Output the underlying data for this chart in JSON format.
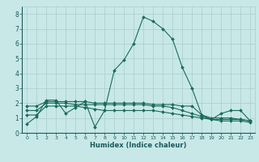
{
  "xlabel": "Humidex (Indice chaleur)",
  "background_color": "#c8e8e8",
  "grid_color": "#aacccc",
  "line_color": "#1a6b5a",
  "xlim": [
    -0.5,
    23.5
  ],
  "ylim": [
    0,
    8.5
  ],
  "xticks": [
    0,
    1,
    2,
    3,
    4,
    5,
    6,
    7,
    8,
    9,
    10,
    11,
    12,
    13,
    14,
    15,
    16,
    17,
    18,
    19,
    20,
    21,
    22,
    23
  ],
  "yticks": [
    0,
    1,
    2,
    3,
    4,
    5,
    6,
    7,
    8
  ],
  "series": [
    {
      "x": [
        0,
        1,
        2,
        3,
        4,
        5,
        6,
        7,
        8,
        9,
        10,
        11,
        12,
        13,
        14,
        15,
        16,
        17,
        18,
        19,
        20,
        21,
        22,
        23
      ],
      "y": [
        0.6,
        1.1,
        2.2,
        2.2,
        1.3,
        1.7,
        2.1,
        0.4,
        1.5,
        4.2,
        4.9,
        6.0,
        7.8,
        7.5,
        7.0,
        6.3,
        4.4,
        3.0,
        1.2,
        0.9,
        1.3,
        1.5,
        1.5,
        0.8
      ]
    },
    {
      "x": [
        0,
        1,
        2,
        3,
        4,
        5,
        6,
        7,
        8,
        9,
        10,
        11,
        12,
        13,
        14,
        15,
        16,
        17,
        18,
        19,
        20,
        21,
        22,
        23
      ],
      "y": [
        1.8,
        1.8,
        2.1,
        2.1,
        2.1,
        2.1,
        2.1,
        2.0,
        2.0,
        2.0,
        2.0,
        2.0,
        2.0,
        1.9,
        1.9,
        1.9,
        1.8,
        1.8,
        1.2,
        1.0,
        1.0,
        1.0,
        0.9,
        0.8
      ]
    },
    {
      "x": [
        0,
        1,
        2,
        3,
        4,
        5,
        6,
        7,
        8,
        9,
        10,
        11,
        12,
        13,
        14,
        15,
        16,
        17,
        18,
        19,
        20,
        21,
        22,
        23
      ],
      "y": [
        1.5,
        1.5,
        2.0,
        2.0,
        2.0,
        1.9,
        1.9,
        1.9,
        1.9,
        1.9,
        1.9,
        1.9,
        1.9,
        1.8,
        1.8,
        1.7,
        1.5,
        1.3,
        1.1,
        0.9,
        0.9,
        0.9,
        0.9,
        0.8
      ]
    },
    {
      "x": [
        0,
        1,
        2,
        3,
        4,
        5,
        6,
        7,
        8,
        9,
        10,
        11,
        12,
        13,
        14,
        15,
        16,
        17,
        18,
        19,
        20,
        21,
        22,
        23
      ],
      "y": [
        1.2,
        1.2,
        1.8,
        1.8,
        1.8,
        1.8,
        1.7,
        1.6,
        1.5,
        1.5,
        1.5,
        1.5,
        1.5,
        1.5,
        1.4,
        1.3,
        1.2,
        1.1,
        1.0,
        0.9,
        0.8,
        0.8,
        0.8,
        0.7
      ]
    }
  ]
}
